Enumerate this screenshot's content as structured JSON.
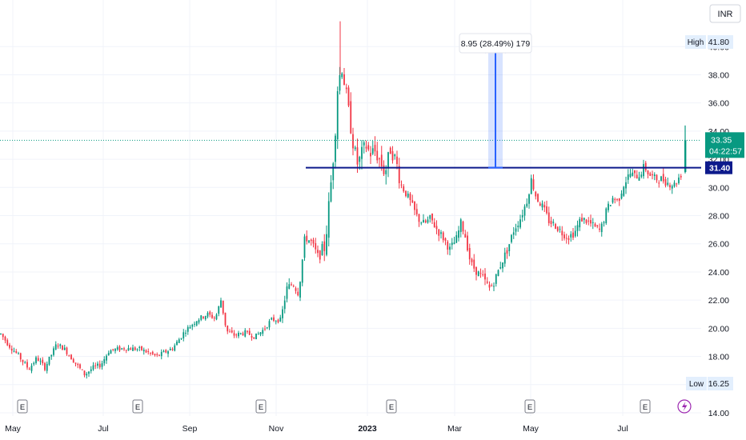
{
  "currency": "INR",
  "markers": {
    "earnings": "E",
    "dividend_icon": "lightning-icon"
  },
  "chart_data": {
    "type": "candlestick",
    "x_tick_labels": [
      "May",
      "Jul",
      "Sep",
      "Nov",
      "2023",
      "Mar",
      "May",
      "Jul"
    ],
    "y_ticks": [
      "14.00",
      "16.00",
      "18.00",
      "20.00",
      "22.00",
      "24.00",
      "26.00",
      "28.00",
      "30.00",
      "32.00",
      "34.00",
      "36.00",
      "38.00",
      "40.00"
    ],
    "ylim": [
      14,
      42.4
    ],
    "grid": true,
    "high": {
      "label": "High",
      "value": "41.80"
    },
    "low": {
      "label": "Low",
      "value": "16.25"
    },
    "last_price": {
      "value": "33.35",
      "countdown": "04:22:57",
      "color": "#089981"
    },
    "horizontal_line": {
      "value": "31.40",
      "color": "#0d1a8c"
    },
    "measure": {
      "label": "8.95 (28.49%) 179",
      "from": 31.4,
      "to": 40.35,
      "color": "#2962ff"
    },
    "colors": {
      "up": "#089981",
      "down": "#f23645"
    },
    "price_path": [
      [
        0,
        19.6
      ],
      [
        10,
        18.8
      ],
      [
        20,
        18.2
      ],
      [
        35,
        17.1
      ],
      [
        45,
        17.9
      ],
      [
        55,
        17.2
      ],
      [
        70,
        18.9
      ],
      [
        80,
        18.5
      ],
      [
        95,
        17.4
      ],
      [
        105,
        16.7
      ],
      [
        115,
        17.2
      ],
      [
        125,
        17.4
      ],
      [
        135,
        18.4
      ],
      [
        155,
        18.6
      ],
      [
        175,
        18.5
      ],
      [
        195,
        18.0
      ],
      [
        215,
        18.6
      ],
      [
        230,
        19.8
      ],
      [
        245,
        20.6
      ],
      [
        258,
        21.0
      ],
      [
        268,
        20.7
      ],
      [
        275,
        22.0
      ],
      [
        282,
        19.8
      ],
      [
        292,
        19.5
      ],
      [
        305,
        19.7
      ],
      [
        318,
        19.4
      ],
      [
        328,
        19.9
      ],
      [
        338,
        20.6
      ],
      [
        350,
        20.6
      ],
      [
        357,
        22.8
      ],
      [
        365,
        23.2
      ],
      [
        372,
        22.5
      ],
      [
        380,
        26.5
      ],
      [
        388,
        26.1
      ],
      [
        397,
        25.0
      ],
      [
        405,
        25.8
      ],
      [
        412,
        30.0
      ],
      [
        417,
        33.2
      ],
      [
        421,
        37.3
      ],
      [
        426,
        38.6
      ],
      [
        431,
        36.8
      ],
      [
        436,
        34.8
      ],
      [
        441,
        32.8
      ],
      [
        446,
        31.6
      ],
      [
        451,
        32.4
      ],
      [
        456,
        33.0
      ],
      [
        461,
        32.4
      ],
      [
        467,
        32.6
      ],
      [
        473,
        32.0
      ],
      [
        480,
        31.0
      ],
      [
        487,
        32.8
      ],
      [
        494,
        31.8
      ],
      [
        500,
        30.2
      ],
      [
        506,
        29.6
      ],
      [
        513,
        28.8
      ],
      [
        521,
        27.8
      ],
      [
        529,
        27.4
      ],
      [
        537,
        27.8
      ],
      [
        545,
        27.0
      ],
      [
        553,
        26.4
      ],
      [
        561,
        25.6
      ],
      [
        569,
        26.3
      ],
      [
        575,
        27.5
      ],
      [
        581,
        26.4
      ],
      [
        587,
        24.6
      ],
      [
        595,
        24.0
      ],
      [
        603,
        23.5
      ],
      [
        611,
        22.8
      ],
      [
        617,
        23.4
      ],
      [
        625,
        24.6
      ],
      [
        633,
        25.6
      ],
      [
        641,
        27.0
      ],
      [
        649,
        27.8
      ],
      [
        657,
        29.0
      ],
      [
        663,
        30.6
      ],
      [
        669,
        29.3
      ],
      [
        677,
        28.6
      ],
      [
        685,
        27.6
      ],
      [
        693,
        27.3
      ],
      [
        701,
        26.8
      ],
      [
        709,
        26.5
      ],
      [
        717,
        26.8
      ],
      [
        725,
        27.8
      ],
      [
        733,
        27.6
      ],
      [
        741,
        27.2
      ],
      [
        749,
        26.9
      ],
      [
        757,
        28.4
      ],
      [
        765,
        29.3
      ],
      [
        771,
        29.0
      ],
      [
        778,
        30.2
      ],
      [
        786,
        31.0
      ],
      [
        792,
        30.8
      ],
      [
        798,
        30.9
      ],
      [
        804,
        31.5
      ],
      [
        810,
        30.9
      ],
      [
        818,
        30.6
      ],
      [
        826,
        30.6
      ],
      [
        834,
        30.3
      ],
      [
        842,
        30.2
      ],
      [
        848,
        30.8
      ],
      [
        853,
        31.2
      ],
      [
        856,
        33.35
      ]
    ]
  }
}
